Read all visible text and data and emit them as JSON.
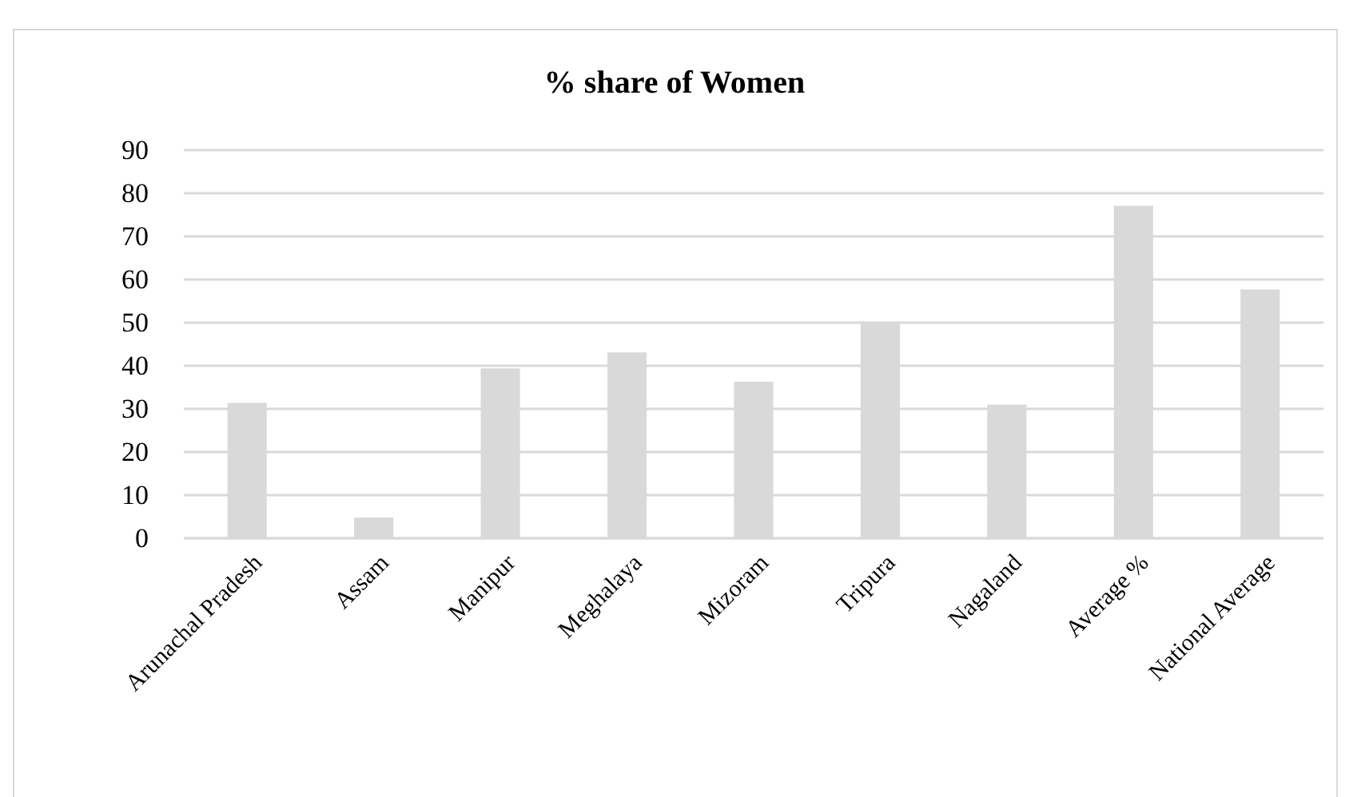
{
  "chart_data": {
    "type": "bar",
    "title": "% share of Women",
    "categories": [
      "Arunachal Pradesh",
      "Assam",
      "Manipur",
      "Meghalaya",
      "Mizoram",
      "Tripura",
      "Nagaland",
      "Average %",
      "National Average"
    ],
    "values": [
      31.4,
      4.8,
      39.4,
      43.1,
      36.3,
      50.2,
      31.0,
      77.1,
      57.7
    ],
    "color": "#d9d9d9",
    "ylim": [
      0,
      90
    ],
    "yticks": [
      0,
      10,
      20,
      30,
      40,
      50,
      60,
      70,
      80,
      90
    ],
    "grid": "y"
  }
}
